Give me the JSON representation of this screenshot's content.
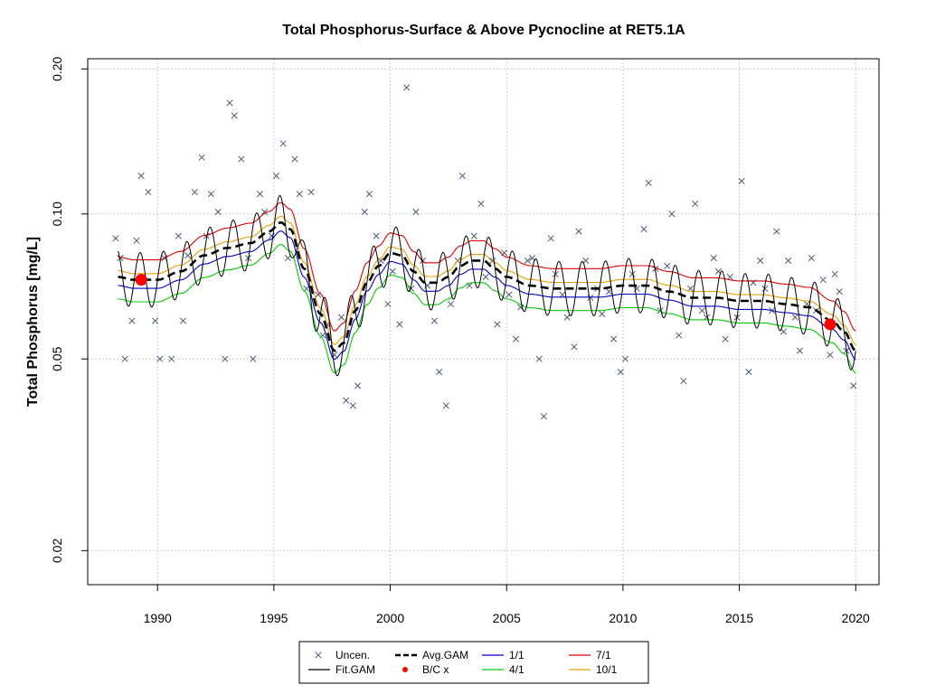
{
  "chart_data": {
    "type": "scatter",
    "title": "Total Phosphorus-Surface & Above Pycnocline at RET5.1A",
    "xlabel": "",
    "ylabel": "Total Phosphorus [mg/L]",
    "xlim": [
      1987.0,
      2021.0
    ],
    "ylim": [
      0.017,
      0.21
    ],
    "y_scale": "log",
    "x_ticks": [
      1990,
      1995,
      2000,
      2005,
      2010,
      2015,
      2020
    ],
    "x_tick_labels": [
      "1990",
      "1995",
      "2000",
      "2005",
      "2010",
      "2015",
      "2020"
    ],
    "y_ticks": [
      0.02,
      0.05,
      0.1,
      0.2
    ],
    "y_tick_labels": [
      "0.02",
      "0.05",
      "0.10",
      "0.20"
    ],
    "grid": true,
    "legend_position": "bottom-center",
    "colors": {
      "uncen": "#4a5a78",
      "fit": "#000000",
      "avg": "#000000",
      "bc": "#ff0000",
      "s1_1": "#0000cc",
      "s4_1": "#00cc00",
      "s7_1": "#dd0000",
      "s10_1": "#e8a000",
      "grid": "#cccccc"
    },
    "legend": [
      {
        "key": "uncen",
        "label": "Uncen.",
        "symbol": "x"
      },
      {
        "key": "avg",
        "label": "Avg.GAM",
        "symbol": "dashed"
      },
      {
        "key": "s1_1",
        "label": "1/1",
        "symbol": "line"
      },
      {
        "key": "s7_1",
        "label": "7/1",
        "symbol": "line"
      },
      {
        "key": "fit",
        "label": "Fit.GAM",
        "symbol": "line"
      },
      {
        "key": "bc",
        "label": "B/C x",
        "symbol": "dot"
      },
      {
        "key": "s4_1",
        "label": "4/1",
        "symbol": "line"
      },
      {
        "key": "s10_1",
        "label": "10/1",
        "symbol": "line"
      }
    ],
    "avg_gam": {
      "name": "Avg.GAM",
      "x": [
        1988.3,
        1989.0,
        1990.0,
        1991.0,
        1992.0,
        1993.0,
        1994.0,
        1994.8,
        1995.3,
        1995.7,
        1996.3,
        1997.0,
        1997.6,
        1998.0,
        1998.5,
        1999.0,
        1999.5,
        2000.0,
        2000.5,
        2001.0,
        2001.5,
        2002.0,
        2002.5,
        2003.0,
        2003.5,
        2004.0,
        2004.5,
        2005.0,
        2006.0,
        2007.0,
        2008.0,
        2009.0,
        2010.0,
        2011.0,
        2012.0,
        2013.0,
        2014.0,
        2015.0,
        2016.0,
        2017.0,
        2018.0,
        2019.0,
        2019.5,
        2020.0
      ],
      "y": [
        0.074,
        0.073,
        0.073,
        0.076,
        0.082,
        0.085,
        0.087,
        0.092,
        0.096,
        0.093,
        0.077,
        0.062,
        0.052,
        0.054,
        0.063,
        0.072,
        0.078,
        0.083,
        0.082,
        0.076,
        0.072,
        0.072,
        0.074,
        0.078,
        0.08,
        0.08,
        0.077,
        0.074,
        0.071,
        0.07,
        0.07,
        0.07,
        0.071,
        0.071,
        0.069,
        0.067,
        0.067,
        0.066,
        0.066,
        0.065,
        0.064,
        0.06,
        0.057,
        0.052
      ]
    },
    "bands": [
      {
        "name": "1/1",
        "color_key": "s1_1",
        "factor": 0.96
      },
      {
        "name": "4/1",
        "color_key": "s4_1",
        "factor": 0.9
      },
      {
        "name": "7/1",
        "color_key": "s7_1",
        "factor": 1.1
      },
      {
        "name": "10/1",
        "color_key": "s10_1",
        "factor": 1.03
      }
    ],
    "fit_gam": {
      "name": "Fit.GAM",
      "period_years": 1.0,
      "amplitude": 0.13
    },
    "bc_points": [
      {
        "x": 1989.3,
        "y": 0.073
      },
      {
        "x": 2018.9,
        "y": 0.059
      }
    ],
    "uncensored": {
      "x": [
        1988.2,
        1988.4,
        1988.6,
        1988.9,
        1989.1,
        1989.3,
        1989.6,
        1989.9,
        1990.1,
        1990.3,
        1990.6,
        1990.9,
        1991.1,
        1991.3,
        1991.6,
        1991.9,
        1992.1,
        1992.3,
        1992.6,
        1992.9,
        1993.1,
        1993.3,
        1993.6,
        1993.9,
        1994.1,
        1994.4,
        1994.6,
        1994.9,
        1995.1,
        1995.4,
        1995.6,
        1995.9,
        1996.1,
        1996.4,
        1996.6,
        1996.9,
        1997.1,
        1997.3,
        1997.6,
        1997.9,
        1998.1,
        1998.4,
        1998.6,
        1998.9,
        1999.1,
        1999.4,
        1999.6,
        1999.9,
        2000.1,
        2000.4,
        2000.7,
        2000.9,
        2001.1,
        2001.4,
        2001.6,
        2001.9,
        2002.1,
        2002.4,
        2002.6,
        2002.9,
        2003.1,
        2003.4,
        2003.6,
        2003.9,
        2004.1,
        2004.4,
        2004.6,
        2004.9,
        2005.1,
        2005.4,
        2005.6,
        2005.9,
        2006.1,
        2006.4,
        2006.6,
        2006.9,
        2007.1,
        2007.4,
        2007.6,
        2007.9,
        2008.1,
        2008.4,
        2008.6,
        2008.9,
        2009.1,
        2009.4,
        2009.6,
        2009.9,
        2010.1,
        2010.4,
        2010.6,
        2010.9,
        2011.1,
        2011.4,
        2011.6,
        2011.9,
        2012.1,
        2012.4,
        2012.6,
        2012.9,
        2013.1,
        2013.4,
        2013.6,
        2013.9,
        2014.1,
        2014.4,
        2014.6,
        2014.9,
        2015.1,
        2015.4,
        2015.6,
        2015.9,
        2016.1,
        2016.4,
        2016.6,
        2016.9,
        2017.1,
        2017.4,
        2017.6,
        2017.9,
        2018.1,
        2018.3,
        2018.6,
        2018.9,
        2019.1,
        2019.3,
        2019.6,
        2019.9
      ],
      "y": [
        0.089,
        0.081,
        0.05,
        0.06,
        0.088,
        0.12,
        0.111,
        0.06,
        0.05,
        0.081,
        0.05,
        0.09,
        0.06,
        0.082,
        0.111,
        0.131,
        0.09,
        0.11,
        0.101,
        0.05,
        0.17,
        0.16,
        0.13,
        0.081,
        0.05,
        0.11,
        0.101,
        0.09,
        0.12,
        0.14,
        0.081,
        0.13,
        0.11,
        0.07,
        0.111,
        0.068,
        0.056,
        0.059,
        0.051,
        0.061,
        0.041,
        0.04,
        0.044,
        0.101,
        0.11,
        0.09,
        0.08,
        0.065,
        0.076,
        0.059,
        0.183,
        0.07,
        0.101,
        0.08,
        0.071,
        0.06,
        0.047,
        0.04,
        0.065,
        0.08,
        0.12,
        0.071,
        0.09,
        0.105,
        0.074,
        0.08,
        0.059,
        0.083,
        0.068,
        0.055,
        0.064,
        0.08,
        0.081,
        0.05,
        0.038,
        0.089,
        0.075,
        0.068,
        0.061,
        0.053,
        0.092,
        0.08,
        0.067,
        0.07,
        0.062,
        0.069,
        0.055,
        0.047,
        0.05,
        0.075,
        0.07,
        0.093,
        0.116,
        0.077,
        0.063,
        0.078,
        0.1,
        0.056,
        0.045,
        0.07,
        0.105,
        0.063,
        0.061,
        0.081,
        0.076,
        0.055,
        0.074,
        0.061,
        0.117,
        0.047,
        0.072,
        0.08,
        0.07,
        0.063,
        0.092,
        0.057,
        0.08,
        0.061,
        0.052,
        0.065,
        0.081,
        0.063,
        0.073,
        0.051,
        0.075,
        0.069,
        0.052,
        0.044
      ]
    }
  }
}
